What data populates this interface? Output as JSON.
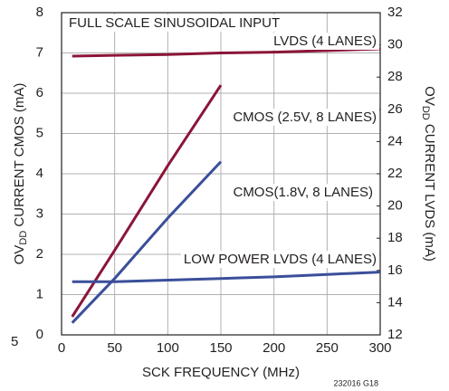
{
  "chart_data": {
    "type": "line",
    "annotation": "FULL SCALE SINUSOIDAL INPUT",
    "x_label": "SCK FREQUENCY (MHz)",
    "y_label": {
      "prefix": "OV",
      "sub": "DD",
      "rest": " CURRENT CMOS (mA)"
    },
    "y2_label": {
      "prefix": "OV",
      "sub": "DD",
      "rest": " CURRENT LVDS (mA)"
    },
    "footnote": "232016 G18",
    "corner_text": "5",
    "xlim": [
      0,
      300
    ],
    "xticks": [
      0,
      50,
      100,
      150,
      200,
      250,
      300
    ],
    "ylim": [
      0,
      8
    ],
    "yticks": [
      0,
      1,
      2,
      3,
      4,
      5,
      6,
      7,
      8
    ],
    "y2lim": [
      12,
      32
    ],
    "y2ticks": [
      12,
      14,
      16,
      18,
      20,
      22,
      24,
      26,
      28,
      30,
      32
    ],
    "grid": true,
    "series": [
      {
        "name": "LVDS (4 LANES)",
        "color": "#8b1538",
        "axis": "y2",
        "x": [
          10,
          50,
          100,
          150,
          200,
          250,
          300
        ],
        "values": [
          29.3,
          29.35,
          29.4,
          29.5,
          29.55,
          29.65,
          29.75
        ]
      },
      {
        "name": "CMOS (2.5V, 8 LANES)",
        "color": "#8b1538",
        "x": [
          10,
          50,
          100,
          150
        ],
        "values": [
          0.45,
          2.1,
          4.2,
          6.2
        ]
      },
      {
        "name": "CMOS(1.8V, 8 LANES)",
        "color": "#3a4f9a",
        "x": [
          10,
          50,
          100,
          150
        ],
        "values": [
          0.3,
          1.4,
          2.9,
          4.3
        ]
      },
      {
        "name": "LOW POWER LVDS (4 LANES)",
        "color": "#3a4f9a",
        "axis": "y2",
        "x": [
          10,
          50,
          100,
          150,
          200,
          250,
          300
        ],
        "values": [
          15.3,
          15.3,
          15.4,
          15.5,
          15.6,
          15.75,
          15.9
        ]
      }
    ]
  }
}
